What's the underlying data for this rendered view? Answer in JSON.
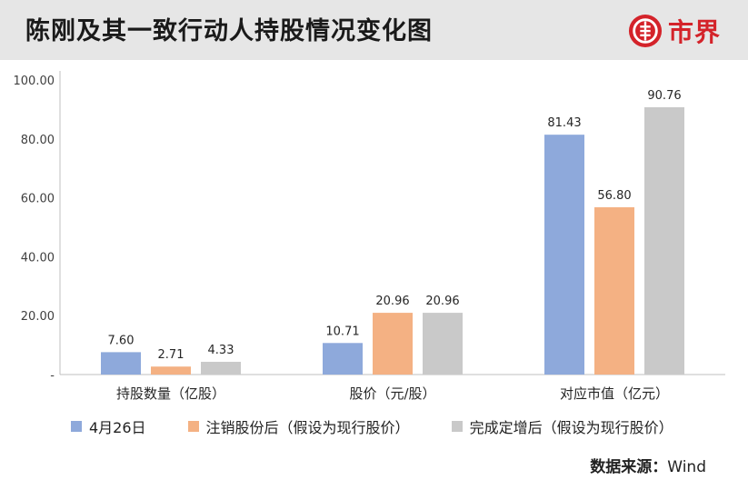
{
  "header": {
    "title": "陈刚及其一致行动人持股情况变化图",
    "brand_text": "市界"
  },
  "colors": {
    "header_bg": "#e6e6e6",
    "brand_red": "#d4232a",
    "series": [
      "#8ea9db",
      "#f4b183",
      "#c9c9c9"
    ]
  },
  "chart_data": {
    "type": "bar",
    "categories": [
      "持股数量（亿股）",
      "股价（元/股）",
      "对应市值（亿元）"
    ],
    "series": [
      {
        "name": "4月26日",
        "values": [
          7.6,
          10.71,
          81.43
        ],
        "labels": [
          "7.60",
          "10.71",
          "81.43"
        ]
      },
      {
        "name": "注销股份后（假设为现行股价）",
        "values": [
          2.71,
          20.96,
          56.8
        ],
        "labels": [
          "2.71",
          "20.96",
          "56.80"
        ]
      },
      {
        "name": "完成定增后（假设为现行股价）",
        "values": [
          4.33,
          20.96,
          90.76
        ],
        "labels": [
          "4.33",
          "20.96",
          "90.76"
        ]
      }
    ],
    "ylim": [
      0,
      100
    ],
    "yticks": [
      "-",
      "20.00",
      "40.00",
      "60.00",
      "80.00",
      "100.00"
    ],
    "grid": false,
    "legend_position": "bottom"
  },
  "source": {
    "label": "数据来源：",
    "value": "Wind"
  }
}
